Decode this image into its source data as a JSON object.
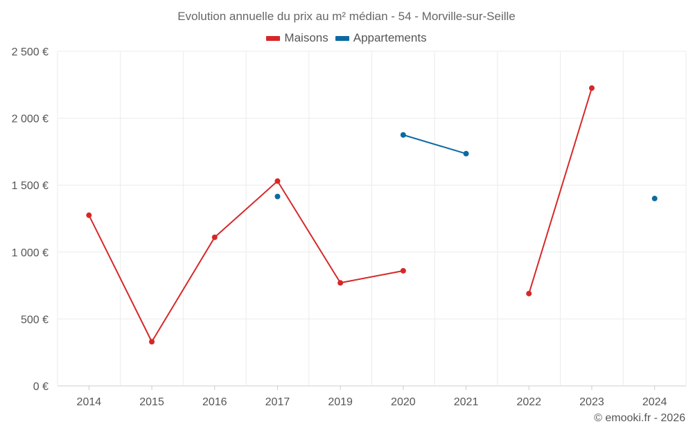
{
  "chart_data": {
    "type": "line",
    "title": "Evolution annuelle du prix au m² médian - 54 - Morville-sur-Seille",
    "categories": [
      "2014",
      "2015",
      "2016",
      "2017",
      "2019",
      "2020",
      "2021",
      "2022",
      "2023",
      "2024"
    ],
    "series": [
      {
        "name": "Maisons",
        "color": "#d62728",
        "values": [
          1275,
          330,
          1110,
          1530,
          770,
          860,
          null,
          690,
          2225,
          null
        ]
      },
      {
        "name": "Appartements",
        "color": "#0b6aa2",
        "values": [
          null,
          null,
          null,
          1415,
          null,
          1875,
          1735,
          null,
          null,
          1400
        ]
      }
    ],
    "y_ticks": [
      0,
      500,
      1000,
      1500,
      2000,
      2500
    ],
    "y_tick_labels": [
      "0 €",
      "500 €",
      "1 000 €",
      "1 500 €",
      "2 000 €",
      "2 500 €"
    ],
    "ylim": [
      0,
      2500
    ],
    "grid": true,
    "legend_position": "top-center"
  },
  "credit": "© emooki.fr - 2026"
}
